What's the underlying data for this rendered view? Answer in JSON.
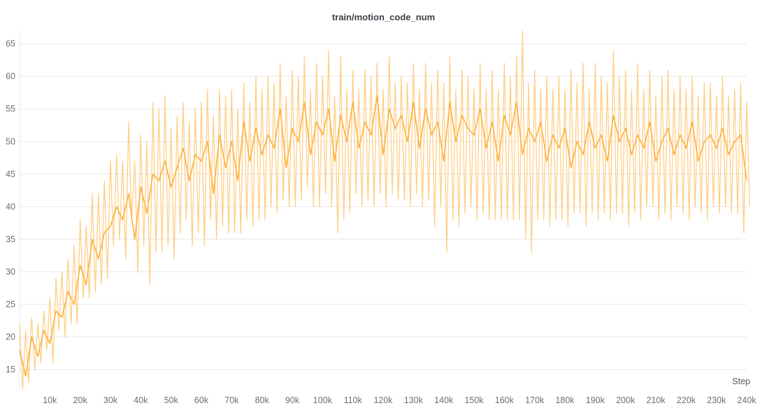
{
  "chart_data": {
    "type": "line",
    "title": "train/motion_code_num",
    "xlabel": "Step",
    "ylabel": "",
    "xlim": [
      0,
      240000
    ],
    "ylim": [
      12,
      67
    ],
    "grid": true,
    "line_color": "#ffb03b",
    "smoothed_color": "#ffcf86",
    "x_ticks": [
      {
        "v": 10000,
        "label": "10k"
      },
      {
        "v": 20000,
        "label": "20k"
      },
      {
        "v": 30000,
        "label": "30k"
      },
      {
        "v": 40000,
        "label": "40k"
      },
      {
        "v": 50000,
        "label": "50k"
      },
      {
        "v": 60000,
        "label": "60k"
      },
      {
        "v": 70000,
        "label": "70k"
      },
      {
        "v": 80000,
        "label": "80k"
      },
      {
        "v": 90000,
        "label": "90k"
      },
      {
        "v": 100000,
        "label": "100k"
      },
      {
        "v": 110000,
        "label": "110k"
      },
      {
        "v": 120000,
        "label": "120k"
      },
      {
        "v": 130000,
        "label": "130k"
      },
      {
        "v": 140000,
        "label": "140k"
      },
      {
        "v": 150000,
        "label": "150k"
      },
      {
        "v": 160000,
        "label": "160k"
      },
      {
        "v": 170000,
        "label": "170k"
      },
      {
        "v": 180000,
        "label": "180k"
      },
      {
        "v": 190000,
        "label": "190k"
      },
      {
        "v": 200000,
        "label": "200k"
      },
      {
        "v": 210000,
        "label": "210k"
      },
      {
        "v": 220000,
        "label": "220k"
      },
      {
        "v": 230000,
        "label": "230k"
      },
      {
        "v": 240000,
        "label": "240k"
      }
    ],
    "y_ticks": [
      {
        "v": 15,
        "label": "15"
      },
      {
        "v": 20,
        "label": "20"
      },
      {
        "v": 25,
        "label": "25"
      },
      {
        "v": 30,
        "label": "30"
      },
      {
        "v": 35,
        "label": "35"
      },
      {
        "v": 40,
        "label": "40"
      },
      {
        "v": 45,
        "label": "45"
      },
      {
        "v": 50,
        "label": "50"
      },
      {
        "v": 55,
        "label": "55"
      },
      {
        "v": 60,
        "label": "60"
      },
      {
        "v": 65,
        "label": "65"
      }
    ],
    "series": [
      {
        "x": [
          0,
          2000,
          4000,
          6000,
          8000,
          10000,
          12000,
          14000,
          16000,
          18000,
          20000,
          22000,
          24000,
          26000,
          28000,
          30000,
          32000,
          34000,
          36000,
          38000,
          40000,
          42000,
          44000,
          46000,
          48000,
          50000,
          52000,
          54000,
          56000,
          58000,
          60000,
          62000,
          64000,
          66000,
          68000,
          70000,
          72000,
          74000,
          76000,
          78000,
          80000,
          82000,
          84000,
          86000,
          88000,
          90000,
          92000,
          94000,
          96000,
          98000,
          100000,
          102000,
          104000,
          106000,
          108000,
          110000,
          112000,
          114000,
          116000,
          118000,
          120000,
          122000,
          124000,
          126000,
          128000,
          130000,
          132000,
          134000,
          136000,
          138000,
          140000,
          142000,
          144000,
          146000,
          148000,
          150000,
          152000,
          154000,
          156000,
          158000,
          160000,
          162000,
          164000,
          166000,
          168000,
          170000,
          172000,
          174000,
          176000,
          178000,
          180000,
          182000,
          184000,
          186000,
          188000,
          190000,
          192000,
          194000,
          196000,
          198000,
          200000,
          202000,
          204000,
          206000,
          208000,
          210000,
          212000,
          214000,
          216000,
          218000,
          220000,
          222000,
          224000,
          226000,
          228000,
          230000,
          232000,
          234000,
          236000,
          238000,
          240000
        ],
        "y": [
          18,
          14,
          20,
          17,
          21,
          19,
          24,
          23,
          27,
          25,
          31,
          28,
          35,
          32,
          36,
          37,
          40,
          38,
          42,
          35,
          43,
          39,
          45,
          44,
          47,
          43,
          46,
          49,
          44,
          48,
          47,
          50,
          42,
          51,
          46,
          50,
          44,
          53,
          47,
          52,
          48,
          51,
          49,
          55,
          46,
          52,
          50,
          56,
          48,
          53,
          51,
          55,
          47,
          54,
          50,
          56,
          49,
          53,
          51,
          57,
          48,
          55,
          52,
          54,
          50,
          56,
          49,
          55,
          51,
          53,
          47,
          56,
          50,
          54,
          52,
          51,
          55,
          49,
          53,
          47,
          54,
          51,
          56,
          48,
          52,
          50,
          53,
          47,
          51,
          49,
          52,
          46,
          50,
          48,
          53,
          49,
          51,
          47,
          54,
          50,
          52,
          48,
          51,
          49,
          53,
          47,
          50,
          52,
          48,
          51,
          49,
          53,
          47,
          50,
          51,
          49,
          52,
          48,
          50,
          51,
          44
        ],
        "min": [
          12,
          13,
          15,
          16,
          18,
          16,
          21,
          20,
          22,
          22,
          26,
          26,
          27,
          28,
          29,
          34,
          35,
          32,
          38,
          30,
          34,
          28,
          33,
          33,
          34,
          32,
          36,
          38,
          34,
          36,
          34,
          38,
          35,
          37,
          36,
          36,
          36,
          38,
          37,
          38,
          38,
          40,
          39,
          41,
          40,
          40,
          41,
          43,
          40,
          40,
          42,
          40,
          36,
          38,
          39,
          42,
          40,
          41,
          40,
          42,
          40,
          42,
          41,
          41,
          40,
          42,
          40,
          41,
          37,
          40,
          33,
          38,
          37,
          39,
          40,
          38,
          39,
          38,
          38,
          38,
          38,
          38,
          38,
          35,
          33,
          38,
          38,
          37,
          38,
          38,
          37,
          39,
          39,
          37,
          39,
          38,
          39,
          38,
          39,
          39,
          37,
          39,
          38,
          40,
          40,
          38,
          39,
          38,
          40,
          39,
          38,
          40,
          39,
          38,
          40,
          39,
          40,
          39,
          39,
          36,
          40
        ],
        "max": [
          22,
          21,
          23,
          22,
          24,
          26,
          29,
          30,
          32,
          34,
          38,
          37,
          42,
          42,
          44,
          47,
          48,
          47,
          53,
          47,
          51,
          50,
          56,
          55,
          57,
          52,
          54,
          56,
          53,
          55,
          56,
          58,
          54,
          58,
          57,
          58,
          55,
          59,
          56,
          60,
          58,
          60,
          59,
          62,
          57,
          61,
          60,
          63,
          58,
          62,
          60,
          64,
          57,
          63,
          58,
          61,
          58,
          61,
          60,
          62,
          58,
          63,
          59,
          60,
          59,
          62,
          58,
          62,
          59,
          61,
          59,
          63,
          58,
          61,
          60,
          58,
          62,
          58,
          61,
          58,
          62,
          60,
          63,
          67,
          59,
          61,
          58,
          60,
          58,
          60,
          58,
          61,
          59,
          62,
          58,
          62,
          60,
          59,
          64,
          60,
          61,
          58,
          62,
          58,
          61,
          57,
          60,
          61,
          58,
          60,
          58,
          60,
          57,
          59,
          59,
          57,
          60,
          57,
          58,
          59,
          56
        ]
      }
    ]
  }
}
